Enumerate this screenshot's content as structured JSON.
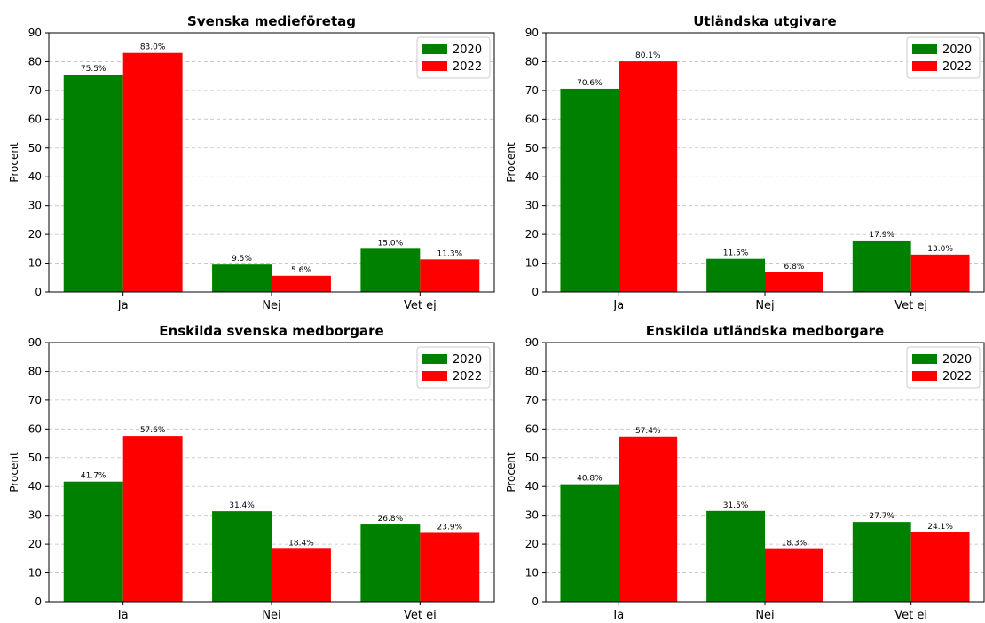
{
  "colors": {
    "2020": "#008000",
    "2022": "#ff0000",
    "grid": "#b0b0b0"
  },
  "chart_data": [
    {
      "type": "bar",
      "title": "Svenska medieföretag",
      "ylabel": "Procent",
      "ylim": [
        0,
        90
      ],
      "yticks": [
        0,
        10,
        20,
        30,
        40,
        50,
        60,
        70,
        80,
        90
      ],
      "grid": "y-dashed",
      "legend": "top-right",
      "categories": [
        "Ja",
        "Nej",
        "Vet ej"
      ],
      "series": [
        {
          "name": "2020",
          "values": [
            75.5,
            9.5,
            15.0
          ],
          "labels": [
            "75.5%",
            "9.5%",
            "15.0%"
          ]
        },
        {
          "name": "2022",
          "values": [
            83.0,
            5.6,
            11.3
          ],
          "labels": [
            "83.0%",
            "5.6%",
            "11.3%"
          ]
        }
      ]
    },
    {
      "type": "bar",
      "title": "Utländska utgivare",
      "ylabel": "Procent",
      "ylim": [
        0,
        90
      ],
      "yticks": [
        0,
        10,
        20,
        30,
        40,
        50,
        60,
        70,
        80,
        90
      ],
      "grid": "y-dashed",
      "legend": "top-right",
      "categories": [
        "Ja",
        "Nej",
        "Vet ej"
      ],
      "series": [
        {
          "name": "2020",
          "values": [
            70.6,
            11.5,
            17.9
          ],
          "labels": [
            "70.6%",
            "11.5%",
            "17.9%"
          ]
        },
        {
          "name": "2022",
          "values": [
            80.1,
            6.8,
            13.0
          ],
          "labels": [
            "80.1%",
            "6.8%",
            "13.0%"
          ]
        }
      ]
    },
    {
      "type": "bar",
      "title": "Enskilda svenska medborgare",
      "ylabel": "Procent",
      "ylim": [
        0,
        90
      ],
      "yticks": [
        0,
        10,
        20,
        30,
        40,
        50,
        60,
        70,
        80,
        90
      ],
      "grid": "y-dashed",
      "legend": "top-right",
      "categories": [
        "Ja",
        "Nej",
        "Vet ej"
      ],
      "series": [
        {
          "name": "2020",
          "values": [
            41.7,
            31.4,
            26.8
          ],
          "labels": [
            "41.7%",
            "31.4%",
            "26.8%"
          ]
        },
        {
          "name": "2022",
          "values": [
            57.6,
            18.4,
            23.9
          ],
          "labels": [
            "57.6%",
            "18.4%",
            "23.9%"
          ]
        }
      ]
    },
    {
      "type": "bar",
      "title": "Enskilda utländska medborgare",
      "ylabel": "Procent",
      "ylim": [
        0,
        90
      ],
      "yticks": [
        0,
        10,
        20,
        30,
        40,
        50,
        60,
        70,
        80,
        90
      ],
      "grid": "y-dashed",
      "legend": "top-right",
      "categories": [
        "Ja",
        "Nej",
        "Vet ej"
      ],
      "series": [
        {
          "name": "2020",
          "values": [
            40.8,
            31.5,
            27.7
          ],
          "labels": [
            "40.8%",
            "31.5%",
            "27.7%"
          ]
        },
        {
          "name": "2022",
          "values": [
            57.4,
            18.3,
            24.1
          ],
          "labels": [
            "57.4%",
            "18.3%",
            "24.1%"
          ]
        }
      ]
    }
  ]
}
